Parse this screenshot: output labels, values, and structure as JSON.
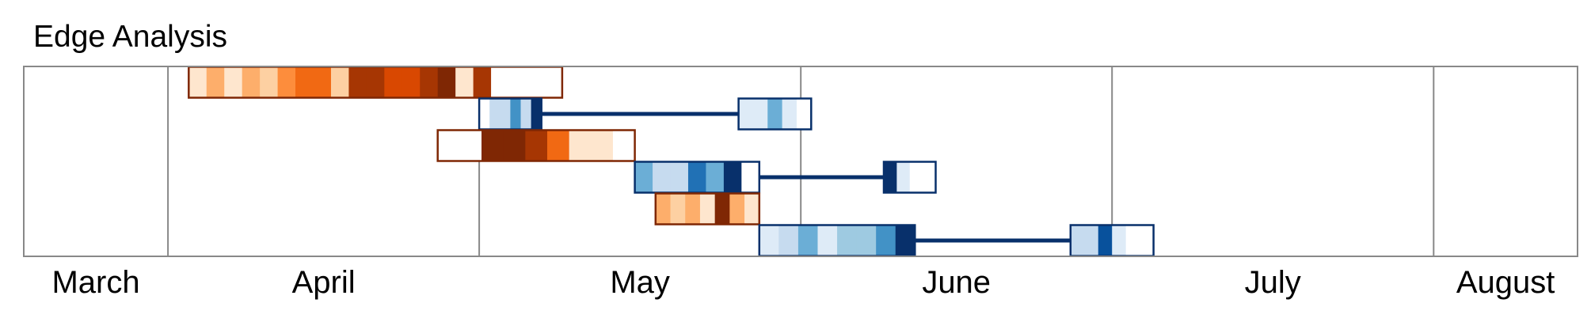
{
  "chart_data": {
    "type": "timeline",
    "title": "Edge Analysis",
    "months": [
      "March",
      "April",
      "May",
      "June",
      "July",
      "August"
    ],
    "colors": {
      "frame": "#888888",
      "orange_border": "#7f2704",
      "blue_border": "#08306b",
      "connector": "#08306b",
      "orange_scale": [
        "#ffffff",
        "#fee6ce",
        "#fdd0a2",
        "#fdae6b",
        "#fd8d3c",
        "#f16913",
        "#d94801",
        "#a63603",
        "#7f2704"
      ],
      "blue_scale": [
        "#ffffff",
        "#deebf7",
        "#c6dbef",
        "#9ecae1",
        "#6baed6",
        "#4292c6",
        "#2171b5",
        "#08519c",
        "#08306b"
      ]
    },
    "rows": [
      {
        "blocks": [
          {
            "palette": "orange",
            "start": "2024-04-03",
            "end": "2024-05-09",
            "cells": [
              1,
              3,
              1,
              3,
              2,
              4,
              5,
              5,
              2,
              7,
              7,
              6,
              6,
              7,
              8,
              1,
              7,
              0,
              0,
              0,
              0
            ]
          }
        ]
      },
      {
        "blocks": [
          {
            "palette": "blue",
            "start": "2024-05-01",
            "end": "2024-05-07",
            "cells": [
              0,
              2,
              2,
              5,
              2,
              8
            ]
          },
          {
            "palette": "blue",
            "start": "2024-05-26",
            "end": "2024-06-02",
            "cells": [
              1,
              1,
              4,
              1,
              0
            ]
          }
        ],
        "connector": true
      },
      {
        "blocks": [
          {
            "palette": "orange",
            "start": "2024-04-27",
            "end": "2024-05-16",
            "cells": [
              0,
              0,
              8,
              8,
              7,
              5,
              1,
              1,
              0
            ]
          }
        ]
      },
      {
        "blocks": [
          {
            "palette": "blue",
            "start": "2024-05-16",
            "end": "2024-05-28",
            "cells": [
              4,
              2,
              2,
              6,
              4,
              8,
              0
            ]
          },
          {
            "palette": "blue",
            "start": "2024-06-09",
            "end": "2024-06-14",
            "cells": [
              8,
              1,
              0,
              0
            ]
          }
        ],
        "connector": true
      },
      {
        "blocks": [
          {
            "palette": "orange",
            "start": "2024-05-18",
            "end": "2024-05-28",
            "cells": [
              3,
              2,
              3,
              1,
              8,
              3,
              1
            ]
          }
        ]
      },
      {
        "blocks": [
          {
            "palette": "blue",
            "start": "2024-05-28",
            "end": "2024-06-12",
            "cells": [
              1,
              2,
              4,
              1,
              3,
              3,
              5,
              8
            ]
          },
          {
            "palette": "blue",
            "start": "2024-06-27",
            "end": "2024-07-05",
            "cells": [
              2,
              2,
              7,
              1,
              0,
              0
            ]
          }
        ],
        "connector": true
      }
    ]
  }
}
